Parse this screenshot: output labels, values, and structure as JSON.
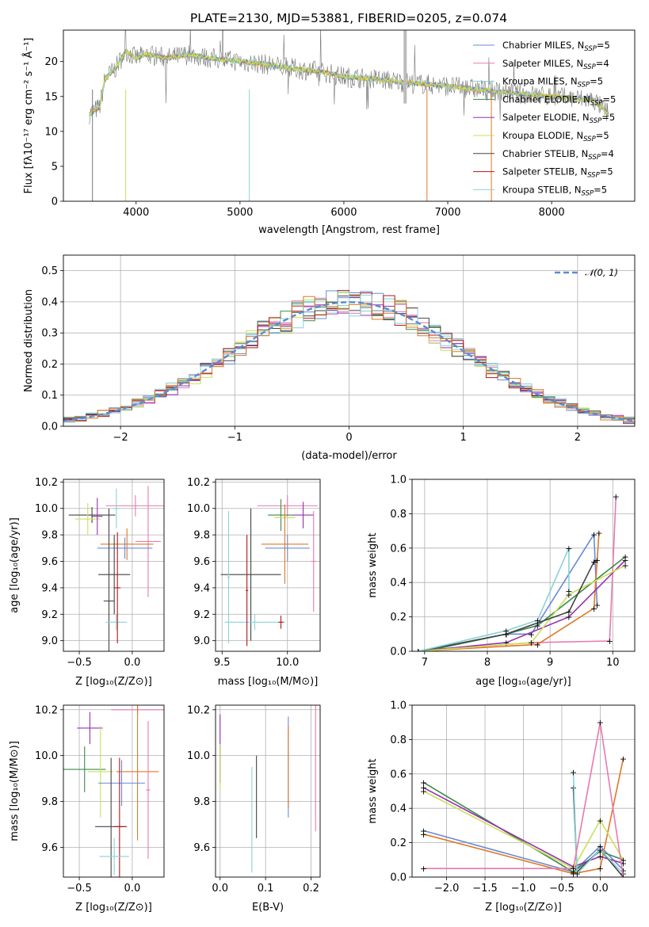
{
  "colors": [
    "#6a8bd6",
    "#e87ab0",
    "#80cccc",
    "#3c8a4a",
    "#9830b0",
    "#c9e05a",
    "#444444",
    "#b01818",
    "#8ad2d8"
  ],
  "orange": "#e07828",
  "norm_color": "#5b8bd0",
  "chart_data": [
    {
      "id": "spectrum",
      "type": "line",
      "title": "PLATE=2130, MJD=53881, FIBERID=0205, z=0.074",
      "xlabel": "wavelength [Angstrom, rest frame]",
      "ylabel": "Flux [fλ10⁻¹⁷ erg cm⁻² s⁻¹ Å⁻¹]",
      "xlim": [
        3300,
        8800
      ],
      "ylim": [
        0,
        24.5
      ],
      "xticks": [
        "4000",
        "5000",
        "6000",
        "7000",
        "8000"
      ],
      "yticks": [
        "0",
        "5",
        "10",
        "15",
        "20"
      ],
      "legend": [
        {
          "main": "Chabrier MILES, N",
          "sub": "SSP",
          "tail": "=5"
        },
        {
          "main": "Salpeter MILES, N",
          "sub": "SSP",
          "tail": "=4"
        },
        {
          "main": "Kroupa MILES, N",
          "sub": "SSP",
          "tail": "=5"
        },
        {
          "main": "Chabrier ELODIE, N",
          "sub": "SSP",
          "tail": "=5"
        },
        {
          "main": "Salpeter ELODIE, N",
          "sub": "SSP",
          "tail": "=5"
        },
        {
          "main": "Kroupa ELODIE, N",
          "sub": "SSP",
          "tail": "=5"
        },
        {
          "main": "Chabrier STELIB, N",
          "sub": "SSP",
          "tail": "=4"
        },
        {
          "main": "Salpeter STELIB, N",
          "sub": "SSP",
          "tail": "=5"
        },
        {
          "main": "Kroupa STELIB, N",
          "sub": "SSP",
          "tail": "=5"
        }
      ],
      "continuum": [
        [
          3550,
          12.5
        ],
        [
          3650,
          13.5
        ],
        [
          3700,
          17.5
        ],
        [
          3800,
          19
        ],
        [
          3900,
          21.5
        ],
        [
          4000,
          20.5
        ],
        [
          4100,
          21
        ],
        [
          4300,
          20.5
        ],
        [
          4500,
          21
        ],
        [
          4700,
          20.5
        ],
        [
          5000,
          20
        ],
        [
          5300,
          19.5
        ],
        [
          5500,
          19
        ],
        [
          5800,
          18.5
        ],
        [
          6000,
          17.8
        ],
        [
          6300,
          17.5
        ],
        [
          6600,
          17
        ],
        [
          7000,
          16.5
        ],
        [
          7300,
          16
        ],
        [
          7600,
          15.5
        ],
        [
          8000,
          15
        ],
        [
          8400,
          14.5
        ],
        [
          8550,
          12.5
        ]
      ]
    },
    {
      "id": "residual",
      "type": "histogram",
      "xlabel": "(data-model)/error",
      "ylabel": "Normed distribution",
      "xlim": [
        -2.5,
        2.5
      ],
      "ylim": [
        0,
        0.55
      ],
      "xticks": [
        "−2",
        "−1",
        "0",
        "1",
        "2"
      ],
      "yticks": [
        "0.0",
        "0.1",
        "0.2",
        "0.3",
        "0.4",
        "0.5"
      ],
      "legend": "𝒩(0, 1)"
    },
    {
      "id": "age_vs_z",
      "type": "scatter",
      "xlabel": "Z [log₁₀(Z/Z⊙)]",
      "ylabel": "age  [log₁₀(age/yr)]",
      "xlim": [
        -0.65,
        0.3
      ],
      "ylim": [
        8.92,
        10.22
      ],
      "xticks": [
        "−0.5",
        "0.0"
      ],
      "yticks": [
        "9.0",
        "9.2",
        "9.4",
        "9.6",
        "9.8",
        "10.0",
        "10.2"
      ]
    },
    {
      "id": "age_vs_mass",
      "type": "scatter",
      "xlabel": "mass [log₁₀(M/M⊙)]",
      "ylabel": "",
      "xlim": [
        9.45,
        10.25
      ],
      "ylim": [
        8.92,
        10.22
      ],
      "xticks": [
        "9.5",
        "10.0"
      ],
      "yticks": [
        "9.0",
        "9.2",
        "9.4",
        "9.6",
        "9.8",
        "10.0",
        "10.2"
      ]
    },
    {
      "id": "mw_vs_age",
      "type": "line",
      "xlabel": "age  [log₁₀(age/yr)]",
      "ylabel": "mass weight",
      "xlim": [
        6.8,
        10.35
      ],
      "ylim": [
        0,
        1.0
      ],
      "xticks": [
        "7",
        "8",
        "9",
        "10"
      ],
      "yticks": [
        "0.0",
        "0.2",
        "0.4",
        "0.6",
        "0.8",
        "1.0"
      ]
    },
    {
      "id": "mass_vs_z",
      "type": "scatter",
      "xlabel": "Z [log₁₀(Z/Z⊙)]",
      "ylabel": "mass [log₁₀(M/M⊙)]",
      "xlim": [
        -0.65,
        0.3
      ],
      "ylim": [
        9.47,
        10.22
      ],
      "xticks": [
        "−0.5",
        "0.0"
      ],
      "yticks": [
        "9.6",
        "9.8",
        "10.0",
        "10.2"
      ]
    },
    {
      "id": "mass_vs_ebv",
      "type": "scatter",
      "xlabel": "E(B-V)",
      "ylabel": "",
      "xlim": [
        -0.01,
        0.22
      ],
      "ylim": [
        9.47,
        10.22
      ],
      "xticks": [
        "0.0",
        "0.1",
        "0.2"
      ],
      "yticks": [
        "9.6",
        "9.8",
        "10.0",
        "10.2"
      ]
    },
    {
      "id": "mw_vs_z",
      "type": "line",
      "xlabel": "Z [log₁₀(Z/Z⊙)]",
      "ylabel": "mass weight",
      "xlim": [
        -2.45,
        0.45
      ],
      "ylim": [
        0,
        1.0
      ],
      "xticks": [
        "−2.0",
        "−1.5",
        "−1.0",
        "−0.5",
        "0.0"
      ],
      "yticks": [
        "0.0",
        "0.2",
        "0.4",
        "0.6",
        "0.8",
        "1.0"
      ]
    }
  ]
}
